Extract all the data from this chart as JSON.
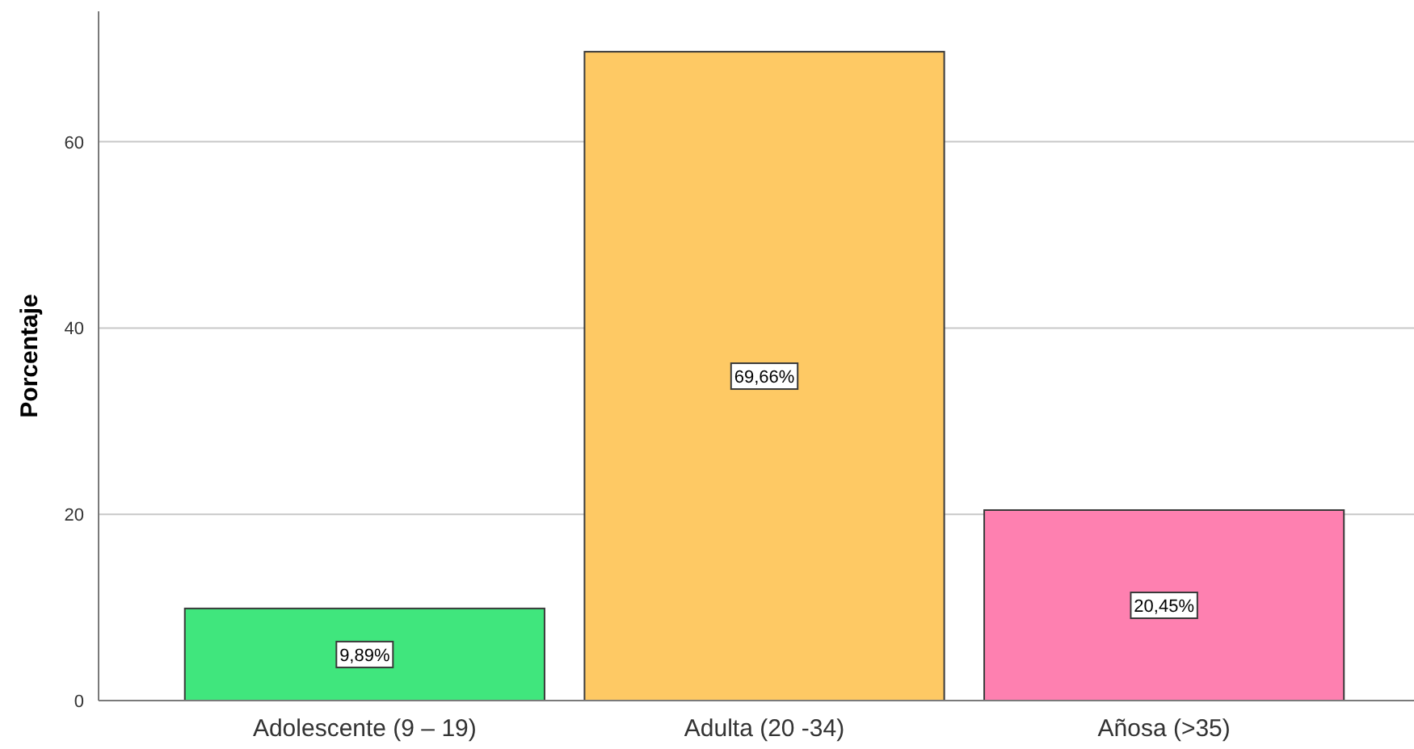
{
  "chart_data": {
    "type": "bar",
    "ylabel": "Porcentaje",
    "categories": [
      "Adolescente (9 – 19)",
      "Adulta (20 -34)",
      "Añosa (>35)"
    ],
    "values": [
      9.89,
      69.66,
      20.45
    ],
    "colors": [
      "#40e67d",
      "#fec964",
      "#fe80b0"
    ],
    "value_labels": [
      "9,89%",
      "69,66%",
      "20,45%"
    ],
    "ylim": [
      0,
      74
    ],
    "yticks": [
      0,
      20,
      40,
      60
    ],
    "grid": "y"
  }
}
